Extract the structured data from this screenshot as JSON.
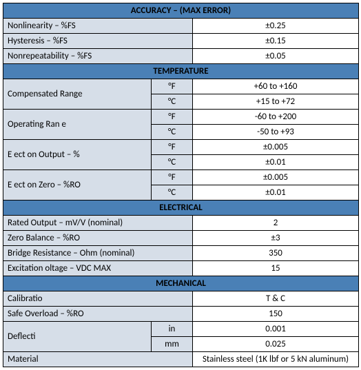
{
  "sections": {
    "accuracy": {
      "title": "ACCURACY – (MAX ERROR)",
      "rows": [
        {
          "label": "Nonlinearity – %FS",
          "value": "±0.25"
        },
        {
          "label": "Hysteresis – %FS",
          "value": "±0.15"
        },
        {
          "label": "Nonrepeatability – %FS",
          "value": "±0.05"
        }
      ]
    },
    "temperature": {
      "title": "TEMPERATURE",
      "rows": [
        {
          "label": "Compensated Range",
          "unit_f": "°F",
          "value_f": "+60 to +160",
          "unit_c": "°C",
          "value_c": "+15 to +72"
        },
        {
          "label": "Operating Ran e",
          "unit_f": "°F",
          "value_f": "-60 to +200",
          "unit_c": "°C",
          "value_c": "-50 to +93"
        },
        {
          "label": "E ect on Output – %",
          "unit_f": "°F",
          "value_f": "±0.005",
          "unit_c": "°C",
          "value_c": "±0.01"
        },
        {
          "label": "E ect on Zero – %RO",
          "unit_f": "°F",
          "value_f": "±0.005",
          "unit_c": "°C",
          "value_c": "±0.01"
        }
      ]
    },
    "electrical": {
      "title": "ELECTRICAL",
      "rows": [
        {
          "label": "Rated Output – mV/V (nominal)",
          "value": "2"
        },
        {
          "label": "Zero Balance – %RO",
          "value": "±3"
        },
        {
          "label": "Bridge Resistance – Ohm (nominal)",
          "value": "350"
        },
        {
          "label": "Excitation oltage – VDC MAX",
          "value": "15"
        }
      ]
    },
    "mechanical": {
      "title": "MECHANICAL",
      "simple_rows": [
        {
          "label": "Calibratio",
          "value": "T & C"
        },
        {
          "label": "Safe Overload – %RO",
          "value": "150"
        }
      ],
      "deflection": {
        "label": "Deflecti",
        "unit_in": "in",
        "value_in": "0.001",
        "unit_mm": "mm",
        "value_mm": "0.025"
      },
      "material": {
        "label": "Material",
        "value": "Stainless steel (1K lbf or 5 kN aluminum)"
      }
    }
  },
  "style": {
    "header_bg": "#4a80b6",
    "label_bg": "#d6dee8",
    "value_bg": "#ffffff",
    "border_color": "#000000",
    "font_size": 13
  }
}
